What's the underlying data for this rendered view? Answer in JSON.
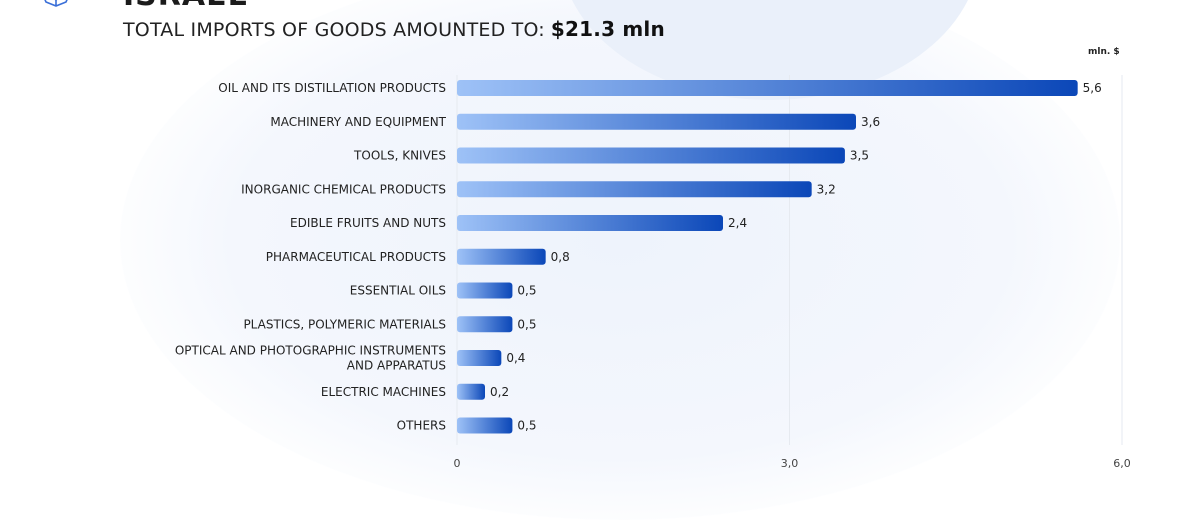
{
  "header": {
    "country": "ISRAEL",
    "subtitle_prefix": "TOTAL IMPORTS OF GOODS AMOUNTED TO:",
    "subtitle_total": "$21.3 mln",
    "unit": "mln. $"
  },
  "colors": {
    "bar_start": "#9ec2f7",
    "bar_end": "#0b47b8",
    "grid": "#e6eaf0"
  },
  "chart_data": {
    "type": "bar",
    "orientation": "horizontal",
    "title": "TOTAL IMPORTS OF GOODS AMOUNTED TO: $21.3 mln",
    "xlabel": "mln. $",
    "ylabel": "",
    "xlim": [
      0,
      6
    ],
    "x_ticks": [
      "0",
      "3,0",
      "6,0"
    ],
    "x_tick_values": [
      0,
      3,
      6
    ],
    "grid": true,
    "categories": [
      [
        "OIL AND ITS DISTILLATION PRODUCTS"
      ],
      [
        "MACHINERY AND EQUIPMENT"
      ],
      [
        "TOOLS, KNIVES"
      ],
      [
        "INORGANIC CHEMICAL PRODUCTS"
      ],
      [
        "EDIBLE FRUITS AND NUTS"
      ],
      [
        "PHARMACEUTICAL PRODUCTS"
      ],
      [
        "ESSENTIAL OILS"
      ],
      [
        "PLASTICS, POLYMERIC MATERIALS"
      ],
      [
        "OPTICAL AND PHOTOGRAPHIC INSTRUMENTS",
        "AND APPARATUS"
      ],
      [
        "ELECTRIC MACHINES"
      ],
      [
        "OTHERS"
      ]
    ],
    "values": [
      5.6,
      3.6,
      3.5,
      3.2,
      2.4,
      0.8,
      0.5,
      0.5,
      0.4,
      0.2,
      0.5
    ],
    "value_labels": [
      "5,6",
      "3,6",
      "3,5",
      "3,2",
      "2,4",
      "0,8",
      "0,5",
      "0,5",
      "0,4",
      "0,2",
      "0,5"
    ]
  }
}
